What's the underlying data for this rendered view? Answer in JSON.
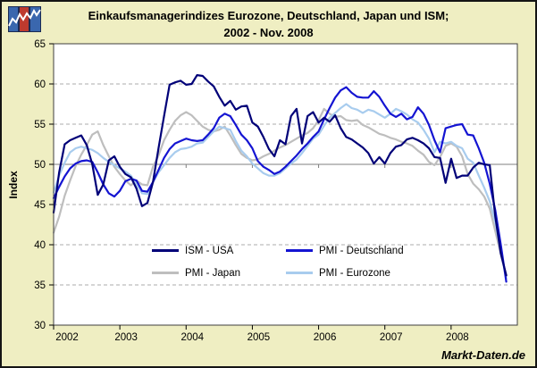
{
  "page": {
    "background": "#EFEEC2",
    "border_color": "#141414",
    "plot_background": "#FFFFFF"
  },
  "header": {
    "title_line1": "Einkaufsmanagerindizes Eurozone, Deutschland, Japan und ISM;",
    "title_line2": "2002 - Nov. 2008",
    "logo": {
      "bar_colors": [
        "#3A67AE",
        "#BE3A2E",
        "#3A67AE"
      ],
      "line_color": "#FFFFFF",
      "border_color": "#1A2A52"
    }
  },
  "footer": {
    "watermark": "Markt-Daten.de"
  },
  "chart_data": {
    "type": "line",
    "title": "Einkaufsmanagerindizes Eurozone, Deutschland, Japan und ISM; 2002 - Nov. 2008",
    "xlabel": "",
    "ylabel": "Index",
    "ylim": [
      30,
      65
    ],
    "yticks": [
      30,
      35,
      40,
      45,
      50,
      55,
      60,
      65
    ],
    "x_tick_labels": [
      "2002",
      "2003",
      "2004",
      "2005",
      "2006",
      "2007",
      "2008"
    ],
    "x_range_months": "Jan 2002 - Nov 2008, monthly (83 points per series)",
    "grid": {
      "dashed_at": [
        35,
        40,
        45,
        55,
        60
      ],
      "solid_at": [
        50
      ],
      "dash_color": "#ABABAB",
      "solid_color": "#7F7F7F"
    },
    "legend_position": "inside-bottom-center",
    "legend_rows": [
      [
        "ISM - USA",
        "PMI - Deutschland"
      ],
      [
        "PMI - Japan",
        "PMI - Eurozone"
      ]
    ],
    "draw_order": [
      2,
      3,
      1,
      0
    ],
    "series": [
      {
        "name": "ISM - USA",
        "color": "#000078",
        "values": [
          44.0,
          49.0,
          52.5,
          53.0,
          53.3,
          53.6,
          52.4,
          50.0,
          46.2,
          47.5,
          50.5,
          51.0,
          49.7,
          48.8,
          48.4,
          47.0,
          44.8,
          45.2,
          47.8,
          52.0,
          56.0,
          59.9,
          60.2,
          60.4,
          59.9,
          60.0,
          61.1,
          61.0,
          60.3,
          59.7,
          58.4,
          57.3,
          57.9,
          56.8,
          57.2,
          57.3,
          55.2,
          54.7,
          53.4,
          51.9,
          51.0,
          53.0,
          52.5,
          56.0,
          56.9,
          52.6,
          56.0,
          56.5,
          55.2,
          55.8,
          55.3,
          56.1,
          54.5,
          53.4,
          53.1,
          52.6,
          52.1,
          51.4,
          50.1,
          50.9,
          50.1,
          51.4,
          52.2,
          52.4,
          53.1,
          53.3,
          53.0,
          52.6,
          52.0,
          50.9,
          50.8,
          47.7,
          50.7,
          48.3,
          48.6,
          48.6,
          49.6,
          50.2,
          50.0,
          49.9,
          43.5,
          38.9,
          36.2
        ]
      },
      {
        "name": "PMI - Deutschland",
        "color": "#1414D2",
        "values": [
          45.8,
          47.2,
          48.5,
          49.5,
          50.1,
          50.4,
          50.5,
          50.3,
          49.0,
          47.5,
          46.4,
          46.0,
          46.7,
          47.9,
          48.2,
          48.0,
          46.7,
          46.6,
          47.8,
          49.3,
          50.8,
          51.9,
          52.6,
          52.9,
          53.2,
          53.0,
          52.9,
          53.0,
          53.7,
          54.5,
          55.8,
          56.3,
          56.0,
          54.9,
          53.7,
          53.0,
          52.0,
          50.4,
          49.7,
          49.3,
          48.8,
          49.1,
          49.7,
          50.4,
          51.1,
          51.9,
          52.6,
          53.4,
          54.1,
          55.6,
          57.0,
          58.3,
          59.2,
          59.6,
          58.9,
          58.4,
          58.3,
          58.3,
          59.1,
          58.4,
          57.3,
          56.3,
          55.9,
          56.3,
          55.6,
          55.9,
          57.1,
          56.3,
          54.9,
          53.0,
          51.5,
          54.5,
          54.7,
          54.9,
          55.0,
          53.7,
          53.6,
          52.0,
          50.2,
          47.6,
          44.3,
          40.0,
          35.4
        ]
      },
      {
        "name": "PMI - Japan",
        "color": "#BEBEBE",
        "values": [
          41.5,
          43.5,
          46.1,
          48.0,
          49.8,
          51.2,
          52.4,
          53.7,
          54.1,
          52.4,
          51.0,
          49.7,
          48.8,
          48.0,
          47.4,
          48.0,
          47.5,
          47.4,
          49.7,
          51.1,
          53.0,
          54.3,
          55.4,
          56.1,
          56.5,
          56.1,
          55.4,
          54.7,
          54.3,
          54.1,
          54.3,
          54.7,
          53.6,
          52.4,
          51.3,
          50.8,
          50.5,
          50.6,
          51.0,
          51.3,
          51.7,
          52.1,
          52.4,
          52.8,
          53.2,
          53.6,
          53.9,
          54.5,
          55.5,
          56.9,
          56.3,
          55.9,
          56.0,
          55.5,
          55.4,
          55.5,
          54.9,
          54.6,
          54.2,
          53.8,
          53.6,
          53.3,
          53.1,
          52.8,
          52.6,
          52.3,
          51.7,
          51.2,
          50.3,
          49.9,
          50.9,
          52.3,
          52.6,
          52.2,
          51.0,
          48.8,
          47.6,
          46.9,
          46.0,
          44.5,
          41.7,
          38.8,
          36.1
        ]
      },
      {
        "name": "PMI - Eurozone",
        "color": "#A8CCEE",
        "values": [
          46.5,
          48.6,
          50.2,
          51.5,
          52.0,
          52.2,
          52.0,
          51.8,
          51.4,
          50.8,
          50.3,
          49.9,
          49.5,
          49.1,
          48.6,
          47.5,
          46.4,
          46.3,
          47.8,
          49.0,
          49.9,
          50.8,
          51.5,
          51.9,
          52.0,
          52.2,
          52.6,
          52.7,
          53.4,
          54.1,
          54.7,
          54.5,
          54.3,
          52.9,
          51.7,
          51.0,
          50.1,
          49.5,
          48.9,
          48.6,
          48.6,
          48.9,
          49.5,
          50.1,
          50.6,
          51.4,
          52.3,
          53.2,
          53.7,
          54.8,
          55.8,
          56.4,
          57.0,
          57.5,
          57.0,
          56.8,
          56.4,
          56.8,
          56.6,
          56.2,
          55.8,
          56.3,
          56.9,
          56.6,
          56.2,
          55.6,
          55.2,
          54.3,
          53.2,
          51.5,
          52.8,
          52.6,
          52.8,
          52.3,
          52.0,
          50.7,
          50.2,
          48.6,
          47.1,
          45.4,
          42.8,
          39.1,
          35.8
        ]
      }
    ]
  }
}
